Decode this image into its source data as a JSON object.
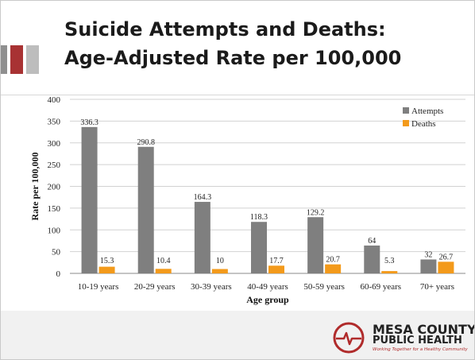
{
  "slide": {
    "title_line1": "Suicide Attempts and Deaths:",
    "title_line2": "Age-Adjusted Rate per 100,000"
  },
  "logo": {
    "line1": "MESA COUNTY",
    "line2": "PUBLIC HEALTH",
    "tagline": "Working Together for a Healthy Community"
  },
  "colors": {
    "attempts": "#7f7f7f",
    "deaths": "#f39a1b",
    "accent_red": "#a83233"
  },
  "chart_data": {
    "type": "bar",
    "title": "",
    "xlabel": "Age group",
    "ylabel": "Rate per 100,000",
    "categories": [
      "10-19 years",
      "20-29 years",
      "30-39 years",
      "40-49 years",
      "50-59 years",
      "60-69 years",
      "70+ years"
    ],
    "series": [
      {
        "name": "Attempts",
        "values": [
          336.3,
          290.8,
          164.3,
          118.3,
          129.2,
          64,
          32
        ],
        "labels": [
          "336.3",
          "290.8",
          "164.3",
          "118.3",
          "129.2",
          "64",
          "32"
        ]
      },
      {
        "name": "Deaths",
        "values": [
          15.3,
          10.4,
          10,
          17.7,
          20.7,
          5.3,
          26.7
        ],
        "labels": [
          "15.3",
          "10.4",
          "10",
          "17.7",
          "20.7",
          "5.3",
          "26.7"
        ]
      }
    ],
    "ylim": [
      0,
      400
    ],
    "yticks": [
      0,
      50,
      100,
      150,
      200,
      250,
      300,
      350,
      400
    ],
    "grid": true,
    "legend": "top-right"
  }
}
